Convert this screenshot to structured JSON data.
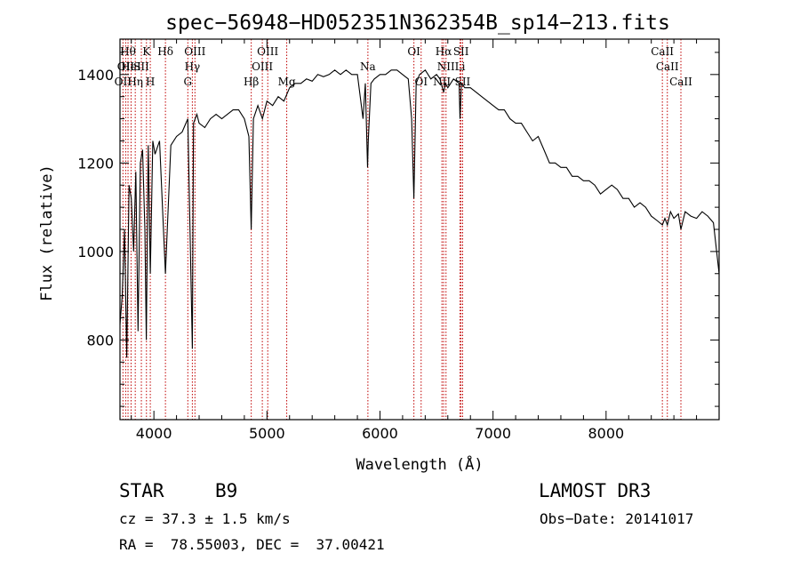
{
  "chart_data": {
    "type": "line",
    "title": "spec−56948−HD052351N362354B_sp14−213.fits",
    "xlabel": "Wavelength (Å)",
    "ylabel": "Flux (relative)",
    "xlim": [
      3700,
      9000
    ],
    "ylim": [
      620,
      1480
    ],
    "xticks": [
      4000,
      5000,
      6000,
      7000,
      8000
    ],
    "yticks": [
      800,
      1000,
      1200,
      1400
    ],
    "series": [
      {
        "name": "spectrum",
        "x": [
          3700,
          3720,
          3740,
          3760,
          3780,
          3800,
          3820,
          3840,
          3860,
          3880,
          3900,
          3920,
          3933,
          3950,
          3968,
          3990,
          4010,
          4050,
          4102,
          4150,
          4200,
          4250,
          4300,
          4340,
          4350,
          4380,
          4400,
          4450,
          4500,
          4550,
          4600,
          4650,
          4700,
          4750,
          4800,
          4840,
          4861,
          4880,
          4920,
          4960,
          5000,
          5050,
          5100,
          5150,
          5200,
          5250,
          5300,
          5350,
          5400,
          5450,
          5500,
          5550,
          5600,
          5650,
          5700,
          5750,
          5800,
          5850,
          5870,
          5890,
          5896,
          5920,
          5950,
          6000,
          6050,
          6100,
          6150,
          6200,
          6250,
          6280,
          6300,
          6320,
          6350,
          6400,
          6450,
          6500,
          6530,
          6563,
          6580,
          6600,
          6650,
          6700,
          6708,
          6720,
          6750,
          6800,
          6850,
          6900,
          6950,
          7000,
          7050,
          7100,
          7150,
          7200,
          7250,
          7300,
          7350,
          7400,
          7450,
          7500,
          7550,
          7600,
          7650,
          7700,
          7750,
          7800,
          7850,
          7900,
          7950,
          8000,
          8050,
          8100,
          8150,
          8200,
          8250,
          8300,
          8350,
          8400,
          8450,
          8498,
          8520,
          8542,
          8570,
          8600,
          8640,
          8662,
          8700,
          8750,
          8800,
          8850,
          8900,
          8950,
          9000
        ],
        "y": [
          835,
          900,
          1050,
          760,
          1150,
          1120,
          1000,
          1180,
          820,
          1200,
          1230,
          1050,
          800,
          1240,
          950,
          1250,
          1220,
          1250,
          950,
          1240,
          1260,
          1270,
          1300,
          780,
          1290,
          1310,
          1290,
          1280,
          1300,
          1310,
          1300,
          1310,
          1320,
          1320,
          1300,
          1260,
          1050,
          1300,
          1330,
          1300,
          1340,
          1330,
          1350,
          1340,
          1370,
          1380,
          1380,
          1390,
          1385,
          1400,
          1395,
          1400,
          1410,
          1400,
          1410,
          1400,
          1400,
          1300,
          1380,
          1190,
          1250,
          1380,
          1390,
          1400,
          1400,
          1410,
          1410,
          1400,
          1390,
          1300,
          1120,
          1380,
          1400,
          1410,
          1390,
          1400,
          1390,
          1360,
          1380,
          1370,
          1390,
          1380,
          1300,
          1380,
          1370,
          1370,
          1360,
          1350,
          1340,
          1330,
          1320,
          1320,
          1300,
          1290,
          1290,
          1270,
          1250,
          1260,
          1230,
          1200,
          1200,
          1190,
          1190,
          1170,
          1170,
          1160,
          1160,
          1150,
          1130,
          1140,
          1150,
          1140,
          1120,
          1120,
          1100,
          1110,
          1100,
          1080,
          1070,
          1060,
          1075,
          1060,
          1090,
          1075,
          1085,
          1050,
          1090,
          1080,
          1075,
          1090,
          1080,
          1065,
          950
        ]
      }
    ],
    "line_markers": [
      {
        "wl": 3726,
        "label": "OII",
        "row": 2
      },
      {
        "wl": 3750,
        "label": "OII",
        "row": 1
      },
      {
        "wl": 3771,
        "label": "Hθ",
        "row": 0
      },
      {
        "wl": 3798,
        "label": "HeI",
        "row": 1
      },
      {
        "wl": 3835,
        "label": "Hη",
        "row": 2
      },
      {
        "wl": 3889,
        "label": "SII",
        "row": 1
      },
      {
        "wl": 3934,
        "label": "K",
        "row": 0
      },
      {
        "wl": 3968,
        "label": "H",
        "row": 2
      },
      {
        "wl": 4102,
        "label": "Hδ",
        "row": 0
      },
      {
        "wl": 4300,
        "label": "G",
        "row": 2
      },
      {
        "wl": 4340,
        "label": "Hγ",
        "row": 1
      },
      {
        "wl": 4363,
        "label": "OIII",
        "row": 0
      },
      {
        "wl": 4861,
        "label": "Hβ",
        "row": 2
      },
      {
        "wl": 4959,
        "label": "OIII",
        "row": 1
      },
      {
        "wl": 5007,
        "label": "OIII",
        "row": 0
      },
      {
        "wl": 5175,
        "label": "Mg",
        "row": 2
      },
      {
        "wl": 5893,
        "label": "Na",
        "row": 1
      },
      {
        "wl": 6300,
        "label": "OI",
        "row": 0
      },
      {
        "wl": 6364,
        "label": "OI",
        "row": 2
      },
      {
        "wl": 6548,
        "label": "NII",
        "row": 2
      },
      {
        "wl": 6563,
        "label": "Hα",
        "row": 0
      },
      {
        "wl": 6584,
        "label": "NII",
        "row": 1
      },
      {
        "wl": 6708,
        "label": "Li",
        "row": 1
      },
      {
        "wl": 6717,
        "label": "SII",
        "row": 0
      },
      {
        "wl": 6731,
        "label": "SII",
        "row": 2
      },
      {
        "wl": 8498,
        "label": "CaII",
        "row": 0
      },
      {
        "wl": 8542,
        "label": "CaII",
        "row": 1
      },
      {
        "wl": 8662,
        "label": "CaII",
        "row": 2
      }
    ]
  },
  "info": {
    "class": "STAR",
    "subclass": "B9",
    "survey": "LAMOST DR3",
    "cz": "cz = 37.3 ± 1.5 km/s",
    "obs_date": "Obs−Date: 20141017",
    "radec": "RA =  78.55003, DEC =  37.00421"
  },
  "colors": {
    "marker": "#c00000",
    "axis": "#000000",
    "spectrum": "#000000"
  }
}
